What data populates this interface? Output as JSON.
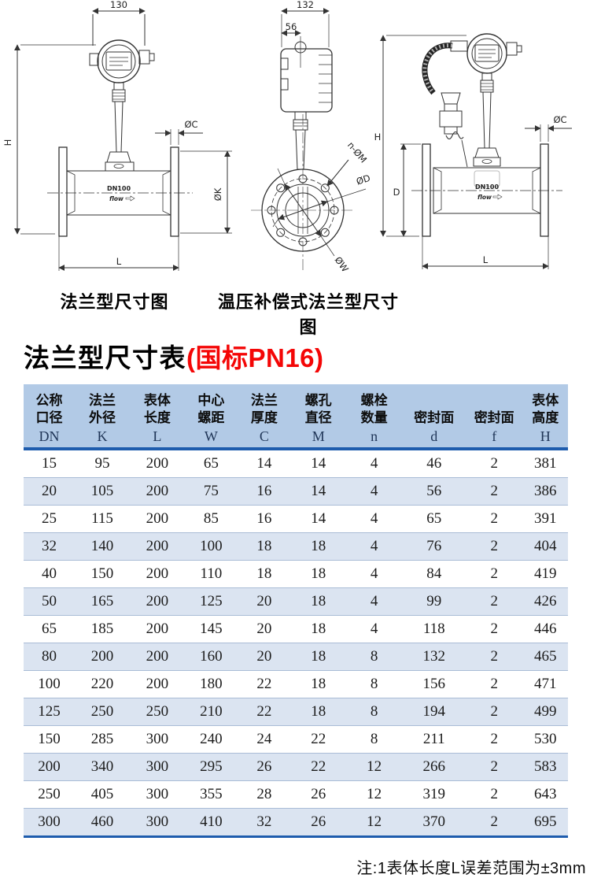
{
  "figures": {
    "caption_left": "法兰型尺寸图",
    "caption_right": "温压补偿式法兰型尺寸图",
    "flange_view": {
      "dim_head_width": "130",
      "dim_height": "H",
      "dim_flange_thickness": "ØC",
      "dim_flange_od": "ØK",
      "dim_length": "L",
      "body_label": "DN100",
      "flow_label": "flow"
    },
    "front_view": {
      "dim_head_width": "132",
      "dim_head_offset": "56",
      "dim_bolt_holes": "n-ØM",
      "dim_seal_face": "ØD",
      "dim_bolt_circle": "ØW"
    },
    "compensated_view": {
      "dim_height": "H",
      "dim_body_height": "D",
      "dim_flange_thickness": "ØC",
      "dim_length": "L",
      "body_label": "DN100",
      "flow_label": "flow"
    }
  },
  "title": {
    "text": "法兰型尺寸表",
    "suffix": "(国标PN16)"
  },
  "table": {
    "headers": [
      {
        "line1": "公称",
        "line2": "口径",
        "code": "DN"
      },
      {
        "line1": "法兰",
        "line2": "外径",
        "code": "K"
      },
      {
        "line1": "表体",
        "line2": "长度",
        "code": "L"
      },
      {
        "line1": "中心",
        "line2": "螺距",
        "code": "W"
      },
      {
        "line1": "法兰",
        "line2": "厚度",
        "code": "C"
      },
      {
        "line1": "螺孔",
        "line2": "直径",
        "code": "M"
      },
      {
        "line1": "螺栓",
        "line2": "数量",
        "code": "n"
      },
      {
        "line1": "",
        "line2": "密封面",
        "code": "d"
      },
      {
        "line1": "",
        "line2": "密封面",
        "code": "f"
      },
      {
        "line1": "表体",
        "line2": "高度",
        "code": "H"
      }
    ],
    "rows": [
      [
        15,
        95,
        200,
        65,
        14,
        14,
        4,
        46,
        2,
        381
      ],
      [
        20,
        105,
        200,
        75,
        16,
        14,
        4,
        56,
        2,
        386
      ],
      [
        25,
        115,
        200,
        85,
        16,
        14,
        4,
        65,
        2,
        391
      ],
      [
        32,
        140,
        200,
        100,
        18,
        18,
        4,
        76,
        2,
        404
      ],
      [
        40,
        150,
        200,
        110,
        18,
        18,
        4,
        84,
        2,
        419
      ],
      [
        50,
        165,
        200,
        125,
        20,
        18,
        4,
        99,
        2,
        426
      ],
      [
        65,
        185,
        200,
        145,
        20,
        18,
        4,
        118,
        2,
        446
      ],
      [
        80,
        200,
        200,
        160,
        20,
        18,
        8,
        132,
        2,
        465
      ],
      [
        100,
        220,
        200,
        180,
        22,
        18,
        8,
        156,
        2,
        471
      ],
      [
        125,
        250,
        250,
        210,
        22,
        18,
        8,
        194,
        2,
        499
      ],
      [
        150,
        285,
        300,
        240,
        24,
        22,
        8,
        211,
        2,
        530
      ],
      [
        200,
        340,
        300,
        295,
        26,
        22,
        12,
        266,
        2,
        583
      ],
      [
        250,
        405,
        300,
        355,
        28,
        26,
        12,
        319,
        2,
        643
      ],
      [
        300,
        460,
        300,
        410,
        32,
        26,
        12,
        370,
        2,
        695
      ]
    ]
  },
  "note": "注:1表体长度L误差范围为±3mm",
  "colors": {
    "header_bg": "#b2cae6",
    "header_border": "#1e5cad",
    "row_stripe": "#dbe4f1",
    "row_line": "#a9bcd6",
    "title_red": "#f40606"
  }
}
